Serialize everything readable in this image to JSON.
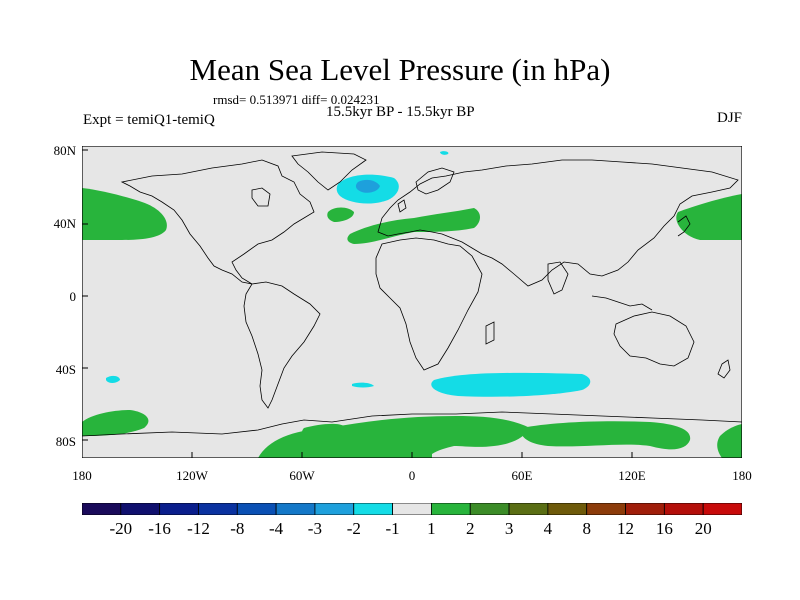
{
  "title": "Mean Sea Level Pressure (in hPa)",
  "stats_text": "rmsd= 0.513971 diff= 0.024231",
  "period_text": "15.5kyr BP - 15.5kyr BP",
  "experiment_text": "Expt = temiQ1-temiQ",
  "season": "DJF",
  "latitude_labels": [
    "80N",
    "40N",
    "0",
    "40S",
    "80S"
  ],
  "longitude_labels": [
    "180",
    "120W",
    "60W",
    "0",
    "60E",
    "120E",
    "180"
  ],
  "colorbar": {
    "labels": [
      "-20",
      "-16",
      "-12",
      "-8",
      "-4",
      "-3",
      "-2",
      "-1",
      "1",
      "2",
      "3",
      "4",
      "8",
      "12",
      "16",
      "20"
    ],
    "colors": [
      "#1a0a5a",
      "#10106e",
      "#0a1e8c",
      "#0a32a0",
      "#0a50b4",
      "#1478c8",
      "#1ea0dc",
      "#14dce6",
      "#e6e6e6",
      "#28b43c",
      "#3c8c28",
      "#5a6e14",
      "#6e5a0a",
      "#8c3c0a",
      "#a01e0a",
      "#b40f0a",
      "#c80a0a"
    ]
  },
  "map_colors": {
    "background": "#e6e6e6",
    "positive_1_2": "#28b43c",
    "negative_1_2": "#14dce6",
    "negative_2_3": "#1ea0dc",
    "coastline": "#000000"
  }
}
